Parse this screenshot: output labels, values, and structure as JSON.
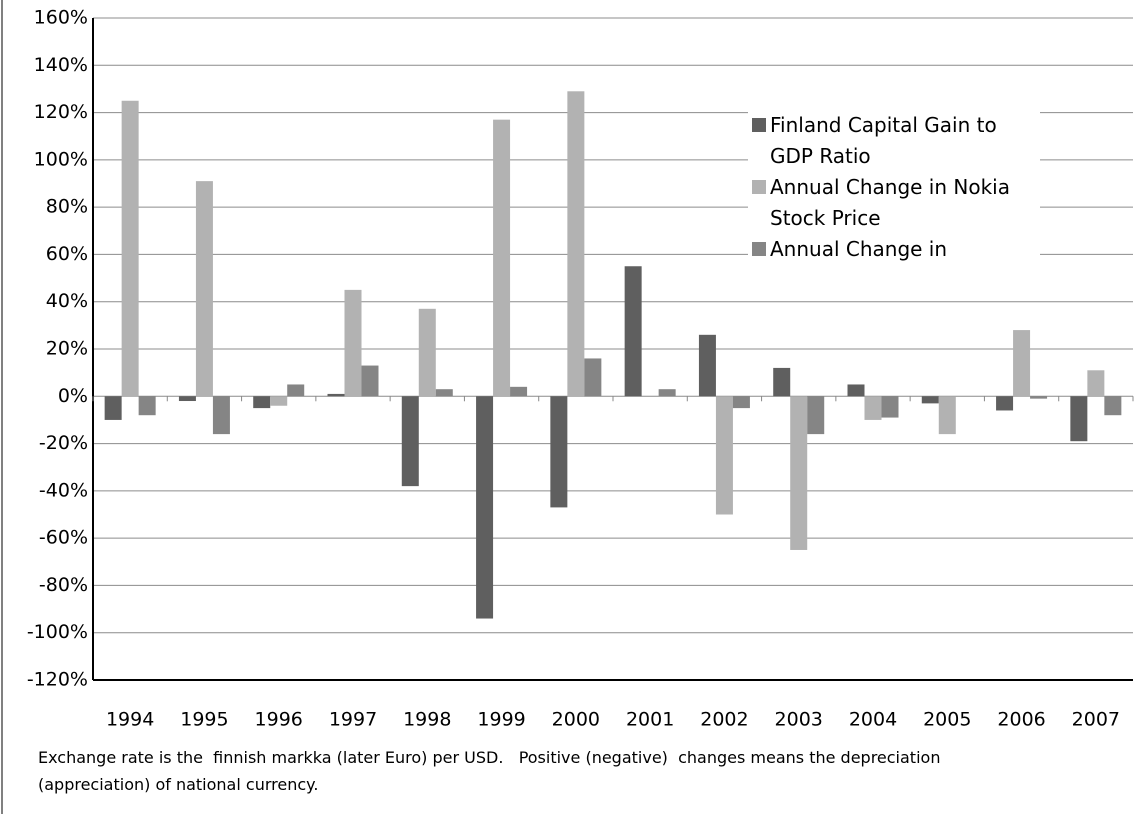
{
  "chart_data": {
    "type": "bar",
    "categories": [
      "1994",
      "1995",
      "1996",
      "1997",
      "1998",
      "1999",
      "2000",
      "2001",
      "2002",
      "2003",
      "2004",
      "2005",
      "2006",
      "2007"
    ],
    "series": [
      {
        "name": "Finland Capital Gain to GDP Ratio",
        "color": "#5f5f5f",
        "values": [
          -10,
          -2,
          -5,
          1,
          -38,
          -94,
          -47,
          55,
          26,
          12,
          5,
          -3,
          -6,
          -19
        ]
      },
      {
        "name": "Annual  Change in Nokia Stock Price",
        "color": "#b2b2b2",
        "values": [
          125,
          91,
          -4,
          45,
          37,
          117,
          129,
          null,
          -50,
          -65,
          -10,
          -16,
          28,
          11
        ]
      },
      {
        "name": "Annual Change in Exchange rate",
        "color": "#858585",
        "values": [
          -8,
          -16,
          5,
          13,
          3,
          4,
          16,
          3,
          -5,
          -16,
          -9,
          null,
          -1,
          -8
        ]
      }
    ],
    "ylim": [
      -120,
      160
    ],
    "yticks": [
      {
        "value": -120,
        "label": "-120%"
      },
      {
        "value": -100,
        "label": "-100%"
      },
      {
        "value": -80,
        "label": "-80%"
      },
      {
        "value": -60,
        "label": "-60%"
      },
      {
        "value": -40,
        "label": "-40%"
      },
      {
        "value": -20,
        "label": "-20%"
      },
      {
        "value": 0,
        "label": "0%"
      },
      {
        "value": 20,
        "label": "20%"
      },
      {
        "value": 40,
        "label": "40%"
      },
      {
        "value": 60,
        "label": "60%"
      },
      {
        "value": 80,
        "label": "80%"
      },
      {
        "value": 100,
        "label": "100%"
      },
      {
        "value": 120,
        "label": "120%"
      },
      {
        "value": 140,
        "label": "140%"
      },
      {
        "value": 160,
        "label": "160%"
      }
    ],
    "grid": true,
    "note": "Exchange rate is the  finnish markka (later Euro) per USD.   Positive (negative)  changes means the depreciation (appreciation) of national currency."
  }
}
